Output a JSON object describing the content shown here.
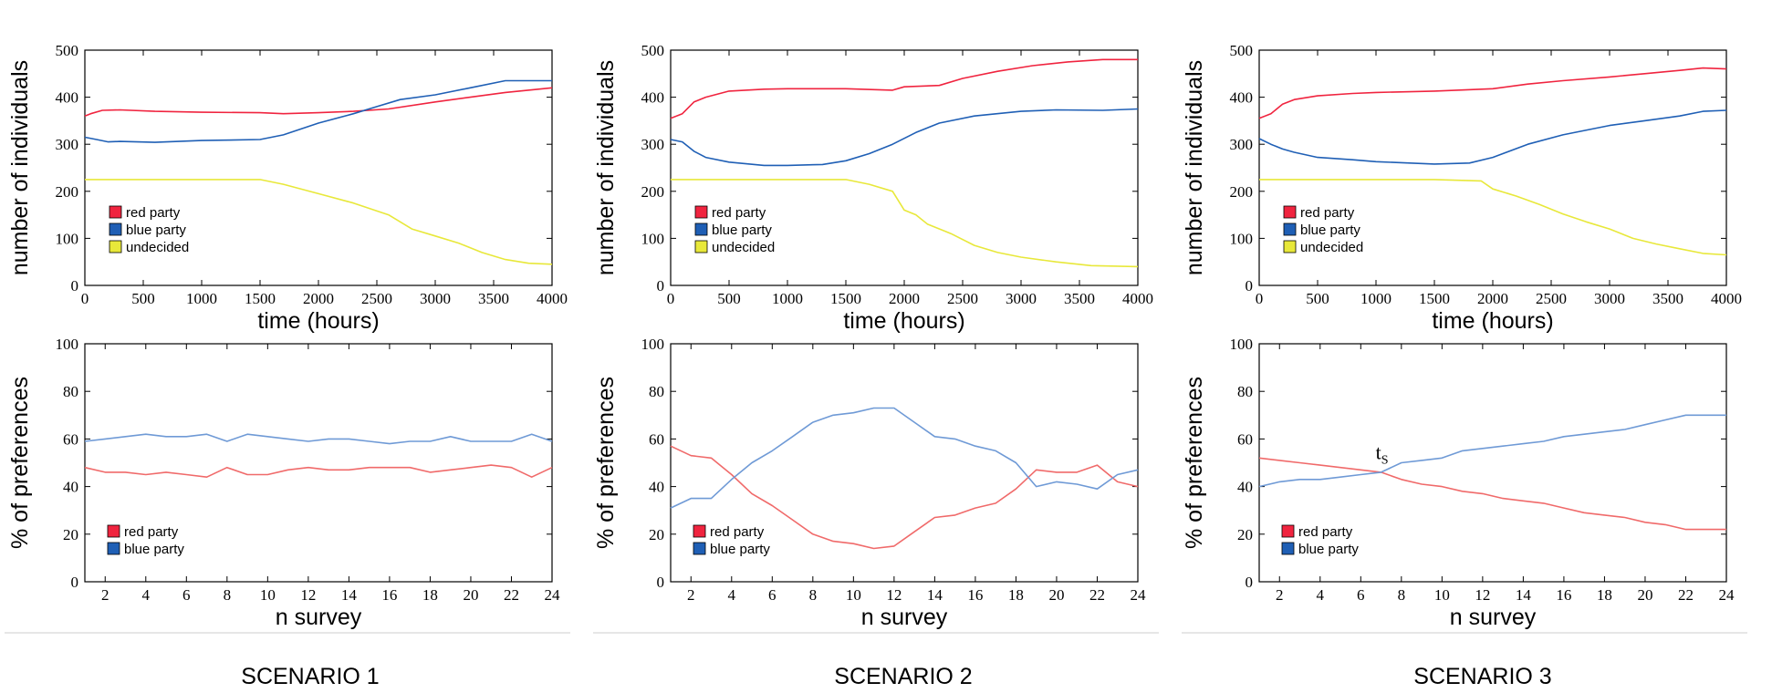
{
  "colors": {
    "red": "#f0243f",
    "blue": "#1f5fb5",
    "yellow": "#e8e83a",
    "red_light": "#f06a6a",
    "blue_light": "#6f9ad6"
  },
  "chart_data": [
    {
      "type": "line",
      "id": "s1_top",
      "xlabel": "time (hours)",
      "ylabel": "number of individuals",
      "xlim": [
        0,
        4000
      ],
      "ylim": [
        0,
        500
      ],
      "xticks": [
        0,
        500,
        1000,
        1500,
        2000,
        2500,
        3000,
        3500,
        4000
      ],
      "yticks": [
        0,
        100,
        200,
        300,
        400,
        500
      ],
      "legend": [
        "red party",
        "blue party",
        "undecided"
      ],
      "series": [
        {
          "name": "red party",
          "color": "red",
          "x": [
            0,
            50,
            150,
            300,
            600,
            1000,
            1500,
            1700,
            2000,
            2300,
            2600,
            3000,
            3300,
            3600,
            4000
          ],
          "y": [
            360,
            365,
            372,
            373,
            370,
            368,
            367,
            365,
            367,
            370,
            375,
            390,
            400,
            410,
            420
          ]
        },
        {
          "name": "blue party",
          "color": "blue",
          "x": [
            0,
            100,
            200,
            300,
            600,
            1000,
            1500,
            1700,
            2000,
            2300,
            2500,
            2700,
            3000,
            3300,
            3600,
            4000
          ],
          "y": [
            315,
            310,
            305,
            306,
            304,
            308,
            310,
            320,
            345,
            365,
            380,
            395,
            405,
            420,
            435,
            435
          ]
        },
        {
          "name": "undecided",
          "color": "yellow",
          "x": [
            0,
            500,
            1000,
            1500,
            1700,
            2000,
            2300,
            2600,
            2800,
            3000,
            3200,
            3400,
            3600,
            3800,
            4000
          ],
          "y": [
            225,
            225,
            225,
            225,
            215,
            195,
            175,
            150,
            120,
            105,
            90,
            70,
            55,
            47,
            45
          ]
        }
      ]
    },
    {
      "type": "line",
      "id": "s2_top",
      "xlabel": "time (hours)",
      "ylabel": "number of individuals",
      "xlim": [
        0,
        4000
      ],
      "ylim": [
        0,
        500
      ],
      "xticks": [
        0,
        500,
        1000,
        1500,
        2000,
        2500,
        3000,
        3500,
        4000
      ],
      "yticks": [
        0,
        100,
        200,
        300,
        400,
        500
      ],
      "legend": [
        "red party",
        "blue party",
        "undecided"
      ],
      "series": [
        {
          "name": "red party",
          "color": "red",
          "x": [
            0,
            100,
            200,
            300,
            500,
            800,
            1000,
            1500,
            1900,
            2000,
            2300,
            2500,
            2800,
            3100,
            3400,
            3700,
            4000
          ],
          "y": [
            355,
            365,
            390,
            400,
            413,
            417,
            418,
            418,
            415,
            422,
            425,
            440,
            455,
            467,
            475,
            480,
            480
          ]
        },
        {
          "name": "blue party",
          "color": "blue",
          "x": [
            0,
            100,
            200,
            300,
            500,
            800,
            1000,
            1300,
            1500,
            1700,
            1900,
            2100,
            2300,
            2600,
            3000,
            3300,
            3700,
            4000
          ],
          "y": [
            310,
            305,
            285,
            272,
            262,
            255,
            255,
            257,
            265,
            280,
            300,
            325,
            345,
            360,
            370,
            373,
            372,
            375
          ]
        },
        {
          "name": "undecided",
          "color": "yellow",
          "x": [
            0,
            500,
            1000,
            1500,
            1700,
            1900,
            2000,
            2100,
            2200,
            2400,
            2600,
            2800,
            3000,
            3300,
            3600,
            4000
          ],
          "y": [
            225,
            225,
            225,
            225,
            215,
            200,
            160,
            150,
            130,
            110,
            85,
            70,
            60,
            50,
            42,
            40
          ]
        }
      ]
    },
    {
      "type": "line",
      "id": "s3_top",
      "xlabel": "time (hours)",
      "ylabel": "number of individuals",
      "xlim": [
        0,
        4000
      ],
      "ylim": [
        0,
        500
      ],
      "xticks": [
        0,
        500,
        1000,
        1500,
        2000,
        2500,
        3000,
        3500,
        4000
      ],
      "yticks": [
        0,
        100,
        200,
        300,
        400,
        500
      ],
      "legend": [
        "red party",
        "blue party",
        "undecided"
      ],
      "series": [
        {
          "name": "red party",
          "color": "red",
          "x": [
            0,
            100,
            200,
            300,
            500,
            800,
            1000,
            1500,
            2000,
            2300,
            2600,
            3000,
            3300,
            3600,
            3800,
            4000
          ],
          "y": [
            355,
            365,
            385,
            395,
            403,
            408,
            410,
            413,
            418,
            428,
            435,
            443,
            450,
            457,
            462,
            460
          ]
        },
        {
          "name": "blue party",
          "color": "blue",
          "x": [
            0,
            100,
            200,
            300,
            500,
            800,
            1000,
            1500,
            1800,
            2000,
            2300,
            2600,
            3000,
            3300,
            3600,
            3800,
            4000
          ],
          "y": [
            312,
            300,
            290,
            283,
            272,
            267,
            263,
            258,
            260,
            272,
            300,
            320,
            340,
            350,
            360,
            370,
            372
          ]
        },
        {
          "name": "undecided",
          "color": "yellow",
          "x": [
            0,
            500,
            1000,
            1500,
            1900,
            2000,
            2200,
            2400,
            2600,
            2800,
            3000,
            3200,
            3400,
            3600,
            3800,
            4000
          ],
          "y": [
            225,
            225,
            225,
            225,
            222,
            205,
            190,
            172,
            152,
            135,
            120,
            100,
            88,
            78,
            68,
            65
          ]
        }
      ]
    },
    {
      "type": "line",
      "id": "s1_bottom",
      "xlabel": "n survey",
      "ylabel": "% of preferences",
      "xlim": [
        1,
        24
      ],
      "ylim": [
        0,
        100
      ],
      "xticks": [
        2,
        4,
        6,
        8,
        10,
        12,
        14,
        16,
        18,
        20,
        22,
        24
      ],
      "yticks": [
        0,
        20,
        40,
        60,
        80,
        100
      ],
      "legend": [
        "red party",
        "blue party"
      ],
      "series": [
        {
          "name": "red party",
          "color": "red_light",
          "x": [
            1,
            2,
            3,
            4,
            5,
            6,
            7,
            8,
            9,
            10,
            11,
            12,
            13,
            14,
            15,
            16,
            17,
            18,
            19,
            20,
            21,
            22,
            23,
            24
          ],
          "y": [
            48,
            46,
            46,
            45,
            46,
            45,
            44,
            48,
            45,
            45,
            47,
            48,
            47,
            47,
            48,
            48,
            48,
            46,
            47,
            48,
            49,
            48,
            44,
            48
          ]
        },
        {
          "name": "blue party",
          "color": "blue_light",
          "x": [
            1,
            2,
            3,
            4,
            5,
            6,
            7,
            8,
            9,
            10,
            11,
            12,
            13,
            14,
            15,
            16,
            17,
            18,
            19,
            20,
            21,
            22,
            23,
            24
          ],
          "y": [
            59,
            60,
            61,
            62,
            61,
            61,
            62,
            59,
            62,
            61,
            60,
            59,
            60,
            60,
            59,
            58,
            59,
            59,
            61,
            59,
            59,
            59,
            62,
            59
          ]
        }
      ]
    },
    {
      "type": "line",
      "id": "s2_bottom",
      "xlabel": "n survey",
      "ylabel": "% of preferences",
      "xlim": [
        1,
        24
      ],
      "ylim": [
        0,
        100
      ],
      "xticks": [
        2,
        4,
        6,
        8,
        10,
        12,
        14,
        16,
        18,
        20,
        22,
        24
      ],
      "yticks": [
        0,
        20,
        40,
        60,
        80,
        100
      ],
      "legend": [
        "red party",
        "blue party"
      ],
      "series": [
        {
          "name": "red party",
          "color": "red_light",
          "x": [
            1,
            2,
            3,
            4,
            5,
            6,
            7,
            8,
            9,
            10,
            11,
            12,
            13,
            14,
            15,
            16,
            17,
            18,
            19,
            20,
            21,
            22,
            23,
            24
          ],
          "y": [
            57,
            53,
            52,
            45,
            37,
            32,
            26,
            20,
            17,
            16,
            14,
            15,
            21,
            27,
            28,
            31,
            33,
            39,
            47,
            46,
            46,
            49,
            42,
            40
          ]
        },
        {
          "name": "blue party",
          "color": "blue_light",
          "x": [
            1,
            2,
            3,
            4,
            5,
            6,
            7,
            8,
            9,
            10,
            11,
            12,
            13,
            14,
            15,
            16,
            17,
            18,
            19,
            20,
            21,
            22,
            23,
            24
          ],
          "y": [
            31,
            35,
            35,
            43,
            50,
            55,
            61,
            67,
            70,
            71,
            73,
            73,
            67,
            61,
            60,
            57,
            55,
            50,
            40,
            42,
            41,
            39,
            45,
            47
          ]
        }
      ]
    },
    {
      "type": "line",
      "id": "s3_bottom",
      "xlabel": "n survey",
      "ylabel": "% of preferences",
      "xlim": [
        1,
        24
      ],
      "ylim": [
        0,
        100
      ],
      "xticks": [
        2,
        4,
        6,
        8,
        10,
        12,
        14,
        16,
        18,
        20,
        22,
        24
      ],
      "yticks": [
        0,
        20,
        40,
        60,
        80,
        100
      ],
      "legend": [
        "red party",
        "blue party"
      ],
      "annotation": {
        "text": "t",
        "subscript": "S",
        "x": 7,
        "y": 50
      },
      "series": [
        {
          "name": "red party",
          "color": "red_light",
          "x": [
            1,
            2,
            3,
            4,
            5,
            6,
            7,
            8,
            9,
            10,
            11,
            12,
            13,
            14,
            15,
            16,
            17,
            18,
            19,
            20,
            21,
            22,
            23,
            24
          ],
          "y": [
            52,
            51,
            50,
            49,
            48,
            47,
            46,
            43,
            41,
            40,
            38,
            37,
            35,
            34,
            33,
            31,
            29,
            28,
            27,
            25,
            24,
            22,
            22,
            22
          ]
        },
        {
          "name": "blue party",
          "color": "blue_light",
          "x": [
            1,
            2,
            3,
            4,
            5,
            6,
            7,
            8,
            9,
            10,
            11,
            12,
            13,
            14,
            15,
            16,
            17,
            18,
            19,
            20,
            21,
            22,
            23,
            24
          ],
          "y": [
            40,
            42,
            43,
            43,
            44,
            45,
            46,
            50,
            51,
            52,
            55,
            56,
            57,
            58,
            59,
            61,
            62,
            63,
            64,
            66,
            68,
            70,
            70,
            70
          ]
        }
      ]
    }
  ],
  "scenarios": [
    "SCENARIO 1",
    "SCENARIO 2",
    "SCENARIO 3"
  ]
}
